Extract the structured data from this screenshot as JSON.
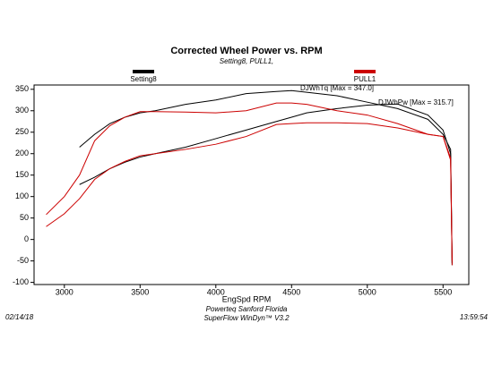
{
  "chart_data": {
    "type": "line",
    "title": "Corrected Wheel Power vs. RPM",
    "subtitle": "Setting8, PULL1,",
    "x_label": "EngSpd RPM",
    "annotations": [
      "DJWhTq [Max = 347.0]",
      "DJWhPw [Max = 315.7]"
    ],
    "footer": [
      "Powerteq Sanford Florida",
      "SuperFlow WinDyn™ V3.2"
    ],
    "date": "02/14/18",
    "time": "13:59:54",
    "x": [
      2880,
      3000,
      3100,
      3200,
      3300,
      3400,
      3500,
      3600,
      3800,
      4000,
      4200,
      4400,
      4500,
      4600,
      4800,
      5000,
      5200,
      5400,
      5500,
      5550,
      5560
    ],
    "series": [
      {
        "name": "Setting8",
        "color": "#000000",
        "torque": [
          null,
          null,
          215,
          245,
          270,
          285,
          295,
          300,
          315,
          325,
          340,
          345,
          347,
          343,
          335,
          320,
          305,
          280,
          245,
          210,
          -60
        ],
        "power": [
          null,
          null,
          128,
          145,
          165,
          180,
          192,
          200,
          215,
          235,
          255,
          275,
          285,
          295,
          305,
          313,
          315.7,
          290,
          255,
          200,
          -55
        ]
      },
      {
        "name": "PULL1",
        "color": "#cc0000",
        "torque": [
          58,
          100,
          150,
          230,
          265,
          285,
          298,
          298,
          297,
          295,
          300,
          318,
          318,
          315,
          300,
          290,
          270,
          245,
          240,
          190,
          -50
        ],
        "power": [
          30,
          60,
          95,
          140,
          165,
          182,
          195,
          200,
          210,
          222,
          240,
          268,
          270,
          272,
          272,
          270,
          260,
          245,
          240,
          185,
          -60
        ]
      }
    ],
    "xlim": [
      2800,
      5670
    ],
    "ylim": [
      -105,
      360
    ],
    "xticks": [
      3000,
      3500,
      4000,
      4500,
      5000,
      5500
    ],
    "yticks": [
      -100,
      -50,
      0,
      50,
      100,
      150,
      200,
      250,
      300,
      350
    ],
    "legend": "top"
  }
}
